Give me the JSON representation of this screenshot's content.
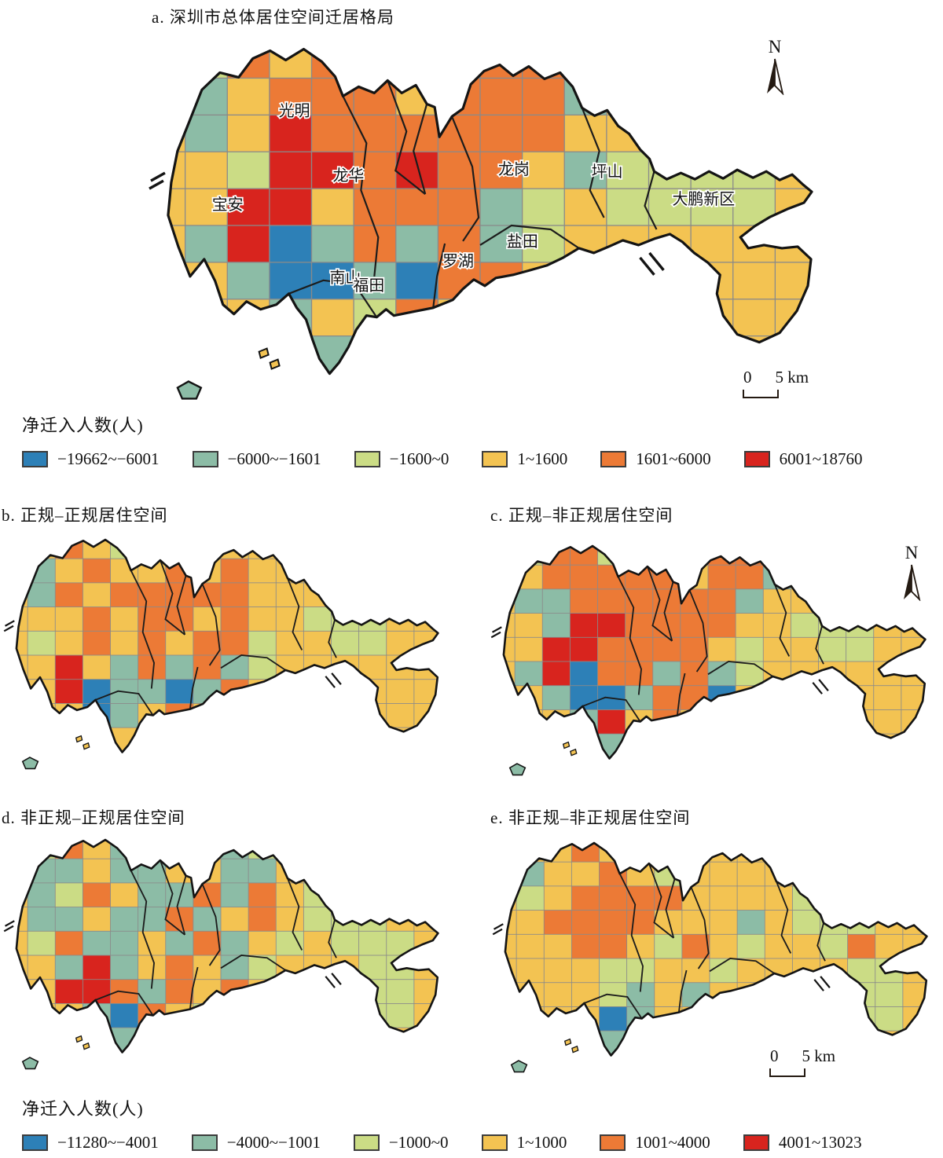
{
  "figure": {
    "panels": [
      {
        "id": "a",
        "title": "a. 深圳市总体居住空间迁居格局"
      },
      {
        "id": "b",
        "title": "b. 正规–正规居住空间"
      },
      {
        "id": "c",
        "title": "c. 正规–非正规居住空间"
      },
      {
        "id": "d",
        "title": "d. 非正规–正规居住空间"
      },
      {
        "id": "e",
        "title": "e. 非正规–非正规居住空间"
      }
    ],
    "district_labels": [
      "宝安",
      "光明",
      "龙华",
      "龙岗",
      "坪山",
      "南山",
      "福田",
      "罗湖",
      "盐田",
      "大鹏新区"
    ],
    "north_label": "N",
    "scale_bar": {
      "zero": "0",
      "five": "5 km"
    }
  },
  "legends": [
    {
      "title": "净迁入人数(人)",
      "items": [
        {
          "label": "−19662~−6001",
          "color": "#2d80b7"
        },
        {
          "label": "−6000~−1601",
          "color": "#8cbca6"
        },
        {
          "label": "−1600~0",
          "color": "#cbdc85"
        },
        {
          "label": "1~1600",
          "color": "#f3c352"
        },
        {
          "label": "1601~6000",
          "color": "#ec7a36"
        },
        {
          "label": "6001~18760",
          "color": "#d8241e"
        }
      ]
    },
    {
      "title": "净迁入人数(人)",
      "items": [
        {
          "label": "−11280~−4001",
          "color": "#2d80b7"
        },
        {
          "label": "−4000~−1001",
          "color": "#8cbca6"
        },
        {
          "label": "−1000~0",
          "color": "#cbdc85"
        },
        {
          "label": "1~1000",
          "color": "#f3c352"
        },
        {
          "label": "1001~4000",
          "color": "#ec7a36"
        },
        {
          "label": "4001~13023",
          "color": "#d8241e"
        }
      ]
    }
  ],
  "chart_data": {
    "type": "heatmap",
    "subtype": "choropleth-map",
    "region": "深圳市 (Shenzhen)",
    "variable": "净迁入人数(人)",
    "panels": [
      {
        "id": "a",
        "title": "a. 深圳市总体居住空间迁居格局",
        "legend_index": 0
      },
      {
        "id": "b",
        "title": "b. 正规–正规居住空间",
        "legend_index": 1
      },
      {
        "id": "c",
        "title": "c. 正规–非正规居住空间",
        "legend_index": 1
      },
      {
        "id": "d",
        "title": "d. 非正规–正规居住空间",
        "legend_index": 1
      },
      {
        "id": "e",
        "title": "e. 非正规–非正规居住空间",
        "legend_index": 1
      }
    ],
    "colors": {
      "B": "#2d80b7",
      "G": "#8cbca6",
      "L": "#cbdc85",
      "Y": "#f3c352",
      "O": "#ec7a36",
      "R": "#d8241e"
    },
    "class_key": {
      "B": "lowest (strong net out-migration)",
      "G": "negative",
      "L": "slight negative",
      "Y": "slight positive",
      "O": "positive",
      "R": "highest (strong net in-migration)"
    },
    "patterns": {
      "a": [
        "YLOYOYYOOOYYYYYY",
        "YGYOOOYOOOGYYYYY",
        "YGYROOOOOOYYYYYY",
        "YYLRROROOYGLLLLY",
        "YYRRYOOOGLYLLLLY",
        "YGRBGOGOGLYYYYYY",
        "YYGBBGBOOYYYYYYY",
        "YYYGYLOYYYYYYYYY",
        "YYYYGYYYYYYYYYYY",
        "YYYYYYYYYYYYYYYY"
      ],
      "b": [
        "YYOYLGLYYYYYYYYY",
        "YGYOYYOYOYYYYYYY",
        "YGOYOOOOOYYYLYYY",
        "YYYOYOOYOYYLLLYY",
        "YLYOYOYOOLYYLLYY",
        "YYRYGOGOGLYYYYYY",
        "YYRBGGBGOYYYYYYY",
        "YYYBGYOYYYYYYYYY",
        "YYYYYYYYYYYYYYYY",
        "YYYYYYYYYYYYYYYY"
      ],
      "c": [
        "YLOOLLYOOOYYYYYY",
        "YYOOOOOYOOGYYYYY",
        "YGGOOOOOOGYYLYYY",
        "YYGRROOOOYYLLLYY",
        "YYRROOOOYLYYLLYY",
        "YGRBOOGOGLYYYYYY",
        "YYGBBGOOBYYYYYYY",
        "YYYGRYOYYYYYYYYY",
        "YYYYGYYYYYYYYYYY",
        "YYYYYYYYYYYYYYYY"
      ],
      "d": [
        "YLOYGYYYGLLYYYYY",
        "YGGYGGYYGGYYYYYY",
        "YGLOYGGOGOYLLLYY",
        "YGGYGGOGYOYLLLYY",
        "YLOGGYGOGYLYLLLY",
        "YYGRGYOYGLYYYLLY",
        "YYRROGOYOYYYYLLY",
        "YYYGBOYLYYYYYLLY",
        "YYYYGOYYYYYYYYYY",
        "YYYYYYYYYYYYYYYY"
      ],
      "e": [
        "YYYOYYYYYYYYYYYY",
        "YGYYOYLYYYYYYYYY",
        "YLYOOOOYYYYLLYYY",
        "YYOOOOYYYGYLLLYY",
        "YYYOOYLOYLYYLOYY",
        "YYYYLLYYLYYYYLLY",
        "YYYYLGYGYYYYYLLY",
        "YYYYBGYYYYYYYLLY",
        "YYYYGYYYYYYYYYYY",
        "YYYYYYYYYYYYYYYY"
      ]
    }
  }
}
